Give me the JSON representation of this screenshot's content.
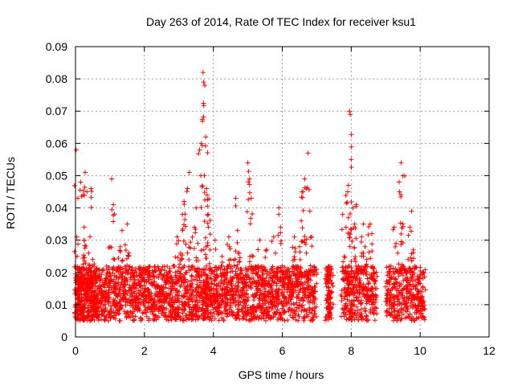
{
  "chart_data": {
    "type": "scatter",
    "title": "Day 263 of 2014, Rate Of TEC Index for receiver ksu1",
    "xlabel": "GPS time / hours",
    "ylabel": "ROTI / TECUs",
    "xlim": [
      0,
      12
    ],
    "ylim": [
      0,
      0.09
    ],
    "x_ticks": [
      "0",
      "2",
      "4",
      "6",
      "8",
      "10",
      "12"
    ],
    "x_tick_values": [
      0,
      2,
      4,
      6,
      8,
      10,
      12
    ],
    "y_ticks": [
      "0",
      "0.01",
      "0.02",
      "0.03",
      "0.04",
      "0.05",
      "0.06",
      "0.07",
      "0.08",
      "0.09"
    ],
    "y_tick_values": [
      0,
      0.01,
      0.02,
      0.03,
      0.04,
      0.05,
      0.06,
      0.07,
      0.08,
      0.09
    ],
    "grid": true,
    "marker": "+",
    "color": "#ff0000",
    "series": [
      {
        "name": "ROTI",
        "x": [
          0.02,
          0.04,
          0.06,
          0.08,
          0.1,
          0.12,
          0.15,
          0.18,
          0.2,
          0.22,
          0.25,
          0.28,
          0.3,
          0.33,
          0.35,
          0.38,
          0.4,
          0.43,
          0.45,
          0.48,
          0.5,
          0.53,
          0.55,
          0.58,
          0.6,
          0.62,
          0.65,
          0.7,
          0.75,
          0.8,
          0.85,
          0.9,
          0.95,
          1.0,
          1.05,
          1.1,
          1.15,
          1.2,
          1.25,
          1.3,
          1.35,
          1.4,
          1.45,
          1.5,
          1.55,
          1.6,
          1.65,
          1.7,
          1.75,
          1.8,
          1.85,
          1.9,
          1.95,
          2.0,
          2.05,
          2.1,
          2.15,
          2.2,
          2.25,
          2.3,
          2.35,
          2.4,
          2.45,
          2.5,
          2.55,
          2.6,
          2.65,
          2.7,
          2.75,
          2.8,
          2.85,
          2.9,
          2.95,
          3.0,
          3.05,
          3.1,
          3.15,
          3.2,
          3.25,
          3.3,
          3.35,
          3.4,
          3.45,
          3.5,
          3.55,
          3.6,
          3.65,
          3.7,
          3.72,
          3.75,
          3.78,
          3.8,
          3.82,
          3.85,
          3.9,
          3.95,
          4.0,
          4.05,
          4.1,
          4.15,
          4.2,
          4.25,
          4.3,
          4.35,
          4.4,
          4.45,
          4.5,
          4.55,
          4.6,
          4.65,
          4.7,
          4.75,
          4.8,
          4.85,
          4.9,
          4.95,
          5.0,
          5.05,
          5.1,
          5.15,
          5.2,
          5.25,
          5.3,
          5.35,
          5.4,
          5.45,
          5.5,
          5.55,
          5.6,
          5.65,
          5.7,
          5.75,
          5.8,
          5.85,
          5.9,
          5.95,
          6.0,
          6.05,
          6.1,
          6.15,
          6.2,
          6.25,
          6.3,
          6.35,
          6.4,
          6.45,
          6.5,
          6.55,
          6.6,
          6.65,
          6.7,
          6.75,
          6.8,
          6.85,
          6.9,
          6.95,
          7.3,
          7.32,
          7.35,
          7.38,
          7.4,
          7.42,
          7.75,
          7.8,
          7.85,
          7.9,
          7.92,
          7.95,
          7.97,
          8.0,
          8.05,
          8.1,
          8.15,
          8.2,
          8.25,
          8.3,
          8.35,
          8.4,
          8.45,
          8.5,
          8.55,
          8.6,
          8.65,
          8.7,
          9.05,
          9.1,
          9.15,
          9.2,
          9.25,
          9.3,
          9.35,
          9.4,
          9.45,
          9.5,
          9.55,
          9.6,
          9.65,
          9.7,
          9.75,
          9.8,
          9.85,
          9.9,
          9.95,
          10.0,
          10.05,
          10.1
        ],
        "y": [
          0.058,
          0.031,
          0.01,
          0.007,
          0.012,
          0.021,
          0.048,
          0.015,
          0.009,
          0.044,
          0.03,
          0.051,
          0.016,
          0.045,
          0.012,
          0.026,
          0.008,
          0.018,
          0.046,
          0.011,
          0.024,
          0.009,
          0.014,
          0.007,
          0.019,
          0.012,
          0.009,
          0.011,
          0.014,
          0.008,
          0.016,
          0.012,
          0.02,
          0.028,
          0.049,
          0.041,
          0.01,
          0.013,
          0.021,
          0.028,
          0.033,
          0.017,
          0.012,
          0.035,
          0.026,
          0.011,
          0.015,
          0.019,
          0.012,
          0.009,
          0.016,
          0.021,
          0.013,
          0.011,
          0.02,
          0.014,
          0.009,
          0.012,
          0.017,
          0.01,
          0.013,
          0.016,
          0.011,
          0.014,
          0.009,
          0.012,
          0.018,
          0.013,
          0.01,
          0.015,
          0.022,
          0.019,
          0.031,
          0.014,
          0.026,
          0.038,
          0.042,
          0.02,
          0.046,
          0.051,
          0.016,
          0.022,
          0.034,
          0.04,
          0.029,
          0.058,
          0.06,
          0.082,
          0.079,
          0.078,
          0.062,
          0.046,
          0.044,
          0.038,
          0.027,
          0.015,
          0.011,
          0.03,
          0.019,
          0.013,
          0.01,
          0.025,
          0.017,
          0.013,
          0.02,
          0.031,
          0.024,
          0.015,
          0.012,
          0.043,
          0.033,
          0.026,
          0.021,
          0.015,
          0.011,
          0.019,
          0.054,
          0.049,
          0.043,
          0.025,
          0.013,
          0.017,
          0.022,
          0.03,
          0.016,
          0.012,
          0.021,
          0.027,
          0.014,
          0.011,
          0.018,
          0.031,
          0.026,
          0.014,
          0.04,
          0.034,
          0.022,
          0.016,
          0.011,
          0.021,
          0.018,
          0.013,
          0.016,
          0.031,
          0.022,
          0.017,
          0.028,
          0.036,
          0.045,
          0.049,
          0.026,
          0.057,
          0.039,
          0.031,
          0.014,
          0.021,
          0.018,
          0.009,
          0.012,
          0.007,
          0.009,
          0.014,
          0.038,
          0.025,
          0.034,
          0.045,
          0.047,
          0.07,
          0.069,
          0.055,
          0.04,
          0.035,
          0.041,
          0.022,
          0.016,
          0.031,
          0.035,
          0.028,
          0.024,
          0.012,
          0.035,
          0.032,
          0.02,
          0.015,
          0.011,
          0.017,
          0.022,
          0.01,
          0.034,
          0.029,
          0.026,
          0.045,
          0.054,
          0.05,
          0.021,
          0.018,
          0.024,
          0.034,
          0.039,
          0.027,
          0.016,
          0.012,
          0.018,
          0.011,
          0.014,
          0.02
        ]
      }
    ]
  }
}
